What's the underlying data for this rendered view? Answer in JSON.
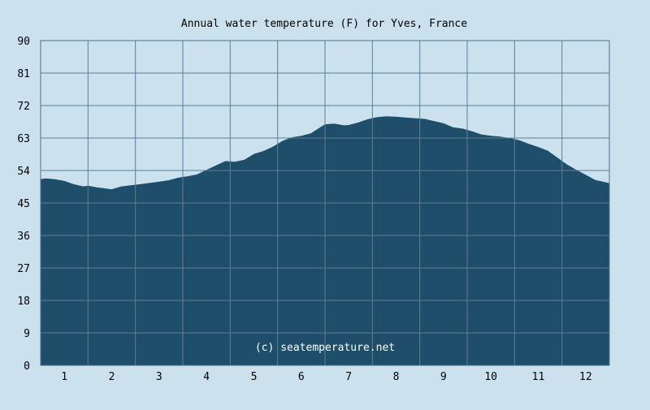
{
  "chart_data": {
    "type": "area",
    "title": "Annual water temperature (F) for Yves, France",
    "xlabel": "",
    "ylabel": "",
    "watermark": "(c) seatemperature.net",
    "x_range": [
      0.5,
      12.5
    ],
    "ylim": [
      0,
      90
    ],
    "y_ticks": [
      0,
      9,
      18,
      27,
      36,
      45,
      54,
      63,
      72,
      81,
      90
    ],
    "x_ticks": [
      1,
      2,
      3,
      4,
      5,
      6,
      7,
      8,
      9,
      10,
      11,
      12
    ],
    "grid": true,
    "colors": {
      "background": "#cbe1ee",
      "fill": "#1f4e6a",
      "grid": "#5d7f96",
      "border": "#4f6f86"
    },
    "x": [
      0.5,
      0.6,
      0.8,
      1.0,
      1.2,
      1.4,
      1.5,
      1.7,
      2.0,
      2.2,
      2.4,
      2.6,
      3.0,
      3.2,
      3.4,
      3.6,
      3.8,
      4.0,
      4.2,
      4.4,
      4.6,
      4.8,
      5.0,
      5.2,
      5.4,
      5.6,
      5.8,
      6.0,
      6.2,
      6.4,
      6.5,
      6.7,
      6.9,
      7.0,
      7.2,
      7.4,
      7.6,
      7.8,
      8.0,
      8.2,
      8.4,
      8.6,
      8.8,
      9.0,
      9.2,
      9.4,
      9.6,
      9.8,
      10.0,
      10.2,
      10.4,
      10.6,
      10.8,
      11.0,
      11.2,
      11.4,
      11.6,
      11.8,
      12.0,
      12.2,
      12.4,
      12.5
    ],
    "values": [
      51.6,
      51.8,
      51.6,
      51.1,
      50.2,
      49.6,
      49.8,
      49.3,
      48.8,
      49.6,
      49.9,
      50.2,
      50.9,
      51.3,
      52.0,
      52.4,
      52.9,
      54.2,
      55.4,
      56.6,
      56.4,
      57.0,
      58.6,
      59.4,
      60.6,
      62.2,
      63.2,
      63.6,
      64.3,
      66.0,
      66.8,
      67.0,
      66.5,
      66.6,
      67.3,
      68.2,
      68.8,
      69.0,
      68.9,
      68.7,
      68.5,
      68.3,
      67.7,
      67.1,
      66.0,
      65.6,
      64.9,
      64.0,
      63.6,
      63.4,
      63.0,
      62.4,
      61.4,
      60.5,
      59.5,
      57.6,
      55.7,
      54.2,
      52.8,
      51.4,
      50.8,
      50.5
    ]
  }
}
